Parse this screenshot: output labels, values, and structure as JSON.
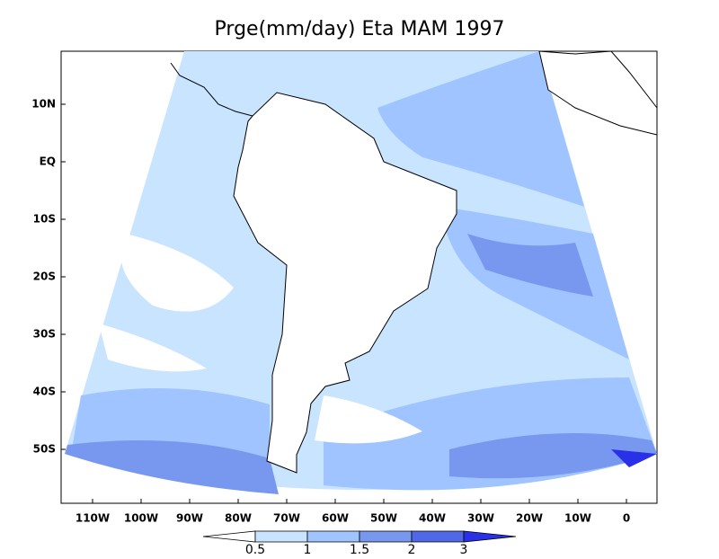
{
  "title": "Prge(mm/day) Eta MAM 1997",
  "map": {
    "lat_labels": [
      {
        "value": 10,
        "label": "10N"
      },
      {
        "value": 0,
        "label": "EQ"
      },
      {
        "value": -10,
        "label": "10S"
      },
      {
        "value": -20,
        "label": "20S"
      },
      {
        "value": -30,
        "label": "30S"
      },
      {
        "value": -40,
        "label": "40S"
      },
      {
        "value": -50,
        "label": "50S"
      }
    ],
    "lon_labels": [
      {
        "value": -110,
        "label": "110W"
      },
      {
        "value": -100,
        "label": "100W"
      },
      {
        "value": -90,
        "label": "90W"
      },
      {
        "value": -80,
        "label": "80W"
      },
      {
        "value": -70,
        "label": "70W"
      },
      {
        "value": -60,
        "label": "60W"
      },
      {
        "value": -50,
        "label": "50W"
      },
      {
        "value": -40,
        "label": "40W"
      },
      {
        "value": -30,
        "label": "30W"
      },
      {
        "value": -20,
        "label": "20W"
      },
      {
        "value": -10,
        "label": "10W"
      },
      {
        "value": 0,
        "label": "0"
      }
    ]
  },
  "colorbar": {
    "levels": [
      0.5,
      1,
      1.5,
      2,
      3
    ],
    "colors": [
      "#ffffff",
      "#c8e4ff",
      "#a0c4ff",
      "#7898f0",
      "#5068e8",
      "#2830e8"
    ]
  }
}
